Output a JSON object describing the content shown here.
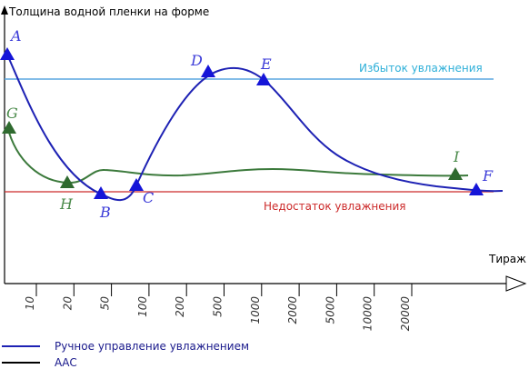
{
  "chart_data": {
    "type": "line",
    "ylabel": "Толщина водной пленки на форме",
    "xlabel": "Тираж",
    "x_ticks": [
      "10",
      "20",
      "50",
      "100",
      "200",
      "500",
      "1000",
      "2000",
      "5000",
      "10000",
      "20000"
    ],
    "reference_lines": [
      {
        "label": "Избыток увлажнения",
        "color": "#5aa7e0"
      },
      {
        "label": "Недостаток увлажнения",
        "color": "#cc2a2a"
      }
    ],
    "series": [
      {
        "name": "Ручное управление увлажнением",
        "color": "#1e22b4",
        "points": [
          {
            "label": "A"
          },
          {
            "label": "B"
          },
          {
            "label": "C"
          },
          {
            "label": "D"
          },
          {
            "label": "E"
          },
          {
            "label": "F"
          }
        ]
      },
      {
        "name": "ААС",
        "color": "#2f6a2f",
        "points": [
          {
            "label": "G"
          },
          {
            "label": "H"
          },
          {
            "label": "I"
          }
        ]
      }
    ]
  }
}
